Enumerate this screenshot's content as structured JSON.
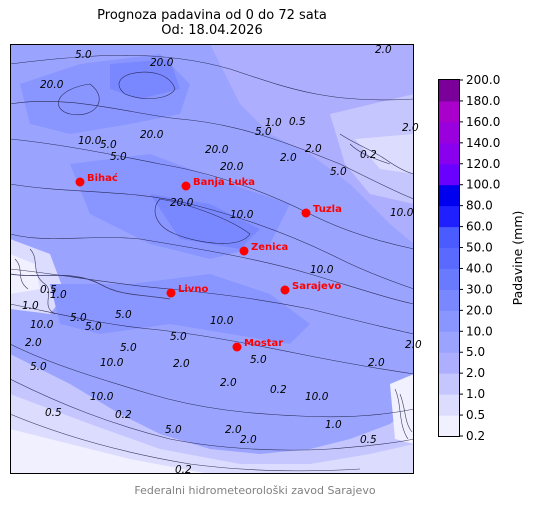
{
  "title_line1": "Prognoza padavina od 0 do 72 sata",
  "title_line2": "Od: 18.04.2026",
  "credit": "Federalni hidrometeorološki zavod Sarajevo",
  "colorbar": {
    "label": "Padavine (mm)",
    "levels": [
      "0.2",
      "0.5",
      "1.0",
      "2.0",
      "5.0",
      "10.0",
      "20.0",
      "30.0",
      "40.0",
      "50.0",
      "60.0",
      "80.0",
      "100.0",
      "120.0",
      "140.0",
      "160.0",
      "180.0",
      "200.0"
    ],
    "colors": [
      "#f0f0ff",
      "#dcdcff",
      "#c6c6ff",
      "#aeaeff",
      "#9aa4ff",
      "#8a96ff",
      "#7a88ff",
      "#6a7aff",
      "#5a6aff",
      "#4a5cff",
      "#2020ff",
      "#0000ee",
      "#6a00ff",
      "#8a00ee",
      "#9a00dd",
      "#aa00cc",
      "#7a0099"
    ]
  },
  "cities": [
    {
      "name": "Bihać",
      "id": "bihac"
    },
    {
      "name": "Banja Luka",
      "id": "banja-luka"
    },
    {
      "name": "Tuzla",
      "id": "tuzla"
    },
    {
      "name": "Zenica",
      "id": "zenica"
    },
    {
      "name": "Livno",
      "id": "livno"
    },
    {
      "name": "Sarajevo",
      "id": "sarajevo"
    },
    {
      "name": "Mostar",
      "id": "mostar"
    }
  ],
  "contour_labels": [
    "5.0",
    "20.0",
    "20.0",
    "2.0",
    "2.0",
    "20.0",
    "5.0",
    "10.0",
    "5.0",
    "20.0",
    "1.0",
    "0.5",
    "5.0",
    "0.2",
    "2.0",
    "20.0",
    "2.0",
    "5.0",
    "10.0",
    "20.0",
    "10.0",
    "10.0",
    "10.0",
    "5.0",
    "1.0",
    "0.5",
    "1.0",
    "5.0",
    "10.0",
    "5.0",
    "2.0",
    "10.0",
    "10.0",
    "5.0",
    "5.0",
    "5.0",
    "2.0",
    "2.0",
    "10.0",
    "5.0",
    "2.0",
    "0.5",
    "0.2",
    "2.0",
    "0.2",
    "5.0",
    "2.0",
    "1.0",
    "0.5",
    "0.2",
    "2.0",
    "10.0"
  ]
}
